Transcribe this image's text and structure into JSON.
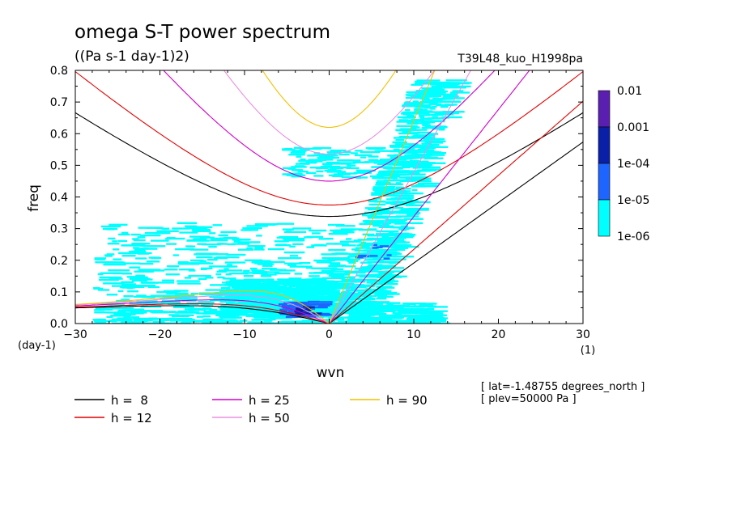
{
  "chart_data": {
    "type": "heatmap",
    "title": "omega S-T power spectrum",
    "subtitle": "((Pa s-1 day-1)2)",
    "run_label": "T39L48_kuo_H1998pa",
    "xlabel": "wvn",
    "ylabel": "freq",
    "x_unit": "(1)",
    "y_unit": "(day-1)",
    "xlim": [
      -30,
      30
    ],
    "ylim": [
      0,
      0.8
    ],
    "xticks": [
      -30,
      -20,
      -10,
      0,
      10,
      20,
      30
    ],
    "yticks": [
      0.0,
      0.1,
      0.2,
      0.3,
      0.4,
      0.5,
      0.6,
      0.7,
      0.8
    ],
    "colorbar": {
      "labels": [
        "0.01",
        "0.001",
        "1e-04",
        "1e-05",
        "1e-06"
      ],
      "colors": [
        "#5a1fb0",
        "#0a1fa8",
        "#1e64ff",
        "#00ffff"
      ]
    },
    "power_regions": [
      {
        "level": "1e-06",
        "color": "#00ffff",
        "description": "cyan",
        "x_range": [
          -28,
          14
        ],
        "y_range": [
          0,
          0.8
        ]
      },
      {
        "level": "1e-05",
        "color": "#1e64ff",
        "x_range": [
          -6,
          -1
        ],
        "y_range": [
          0.02,
          0.07
        ]
      },
      {
        "level": "1e-04",
        "color": "#0a1fa8",
        "x_range": [
          -4,
          -2
        ],
        "y_range": [
          0.03,
          0.05
        ]
      }
    ],
    "dispersion_curves": [
      {
        "name": "h =  8",
        "h": 8,
        "color": "#000000"
      },
      {
        "name": "h = 12",
        "h": 12,
        "color": "#e00000"
      },
      {
        "name": "h = 25",
        "h": 25,
        "color": "#d000c8"
      },
      {
        "name": "h = 50",
        "h": 50,
        "color": "#e890e0"
      },
      {
        "name": "h = 90",
        "h": 90,
        "color": "#f0c000"
      }
    ],
    "annotations": [
      "[ lat=-1.48755 degrees_north ]",
      "[ plev=50000 Pa ]"
    ]
  }
}
